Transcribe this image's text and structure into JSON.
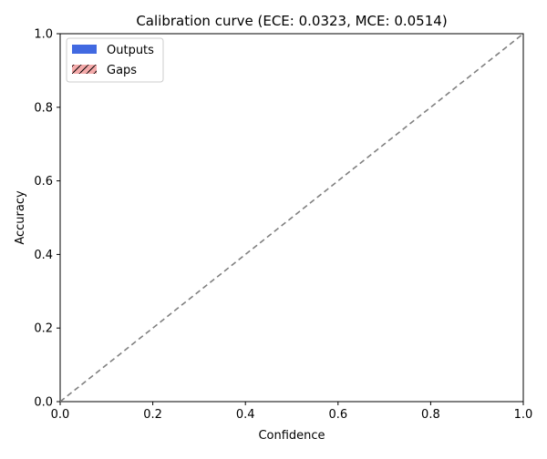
{
  "chart_data": {
    "type": "bar",
    "title": "Calibration curve (ECE: 0.0323, MCE: 0.0514)",
    "xlabel": "Confidence",
    "ylabel": "Accuracy",
    "xlim": [
      0.0,
      1.0
    ],
    "ylim": [
      0.0,
      1.0
    ],
    "x_ticks": [
      "0.0",
      "0.2",
      "0.4",
      "0.6",
      "0.8",
      "1.0"
    ],
    "y_ticks": [
      "0.0",
      "0.2",
      "0.4",
      "0.6",
      "0.8",
      "1.0"
    ],
    "grid": false,
    "legend_position": "top-left",
    "series": [
      {
        "name": "Outputs",
        "values": []
      },
      {
        "name": "Gaps",
        "values": []
      }
    ],
    "reference_line": {
      "x": [
        0.0,
        1.0
      ],
      "y": [
        0.0,
        1.0
      ],
      "style": "dashed"
    },
    "colors": {
      "outputs": "#4169e1",
      "gaps": "#f4aaaa",
      "reference_line": "#808080",
      "axes": "#000000"
    }
  }
}
